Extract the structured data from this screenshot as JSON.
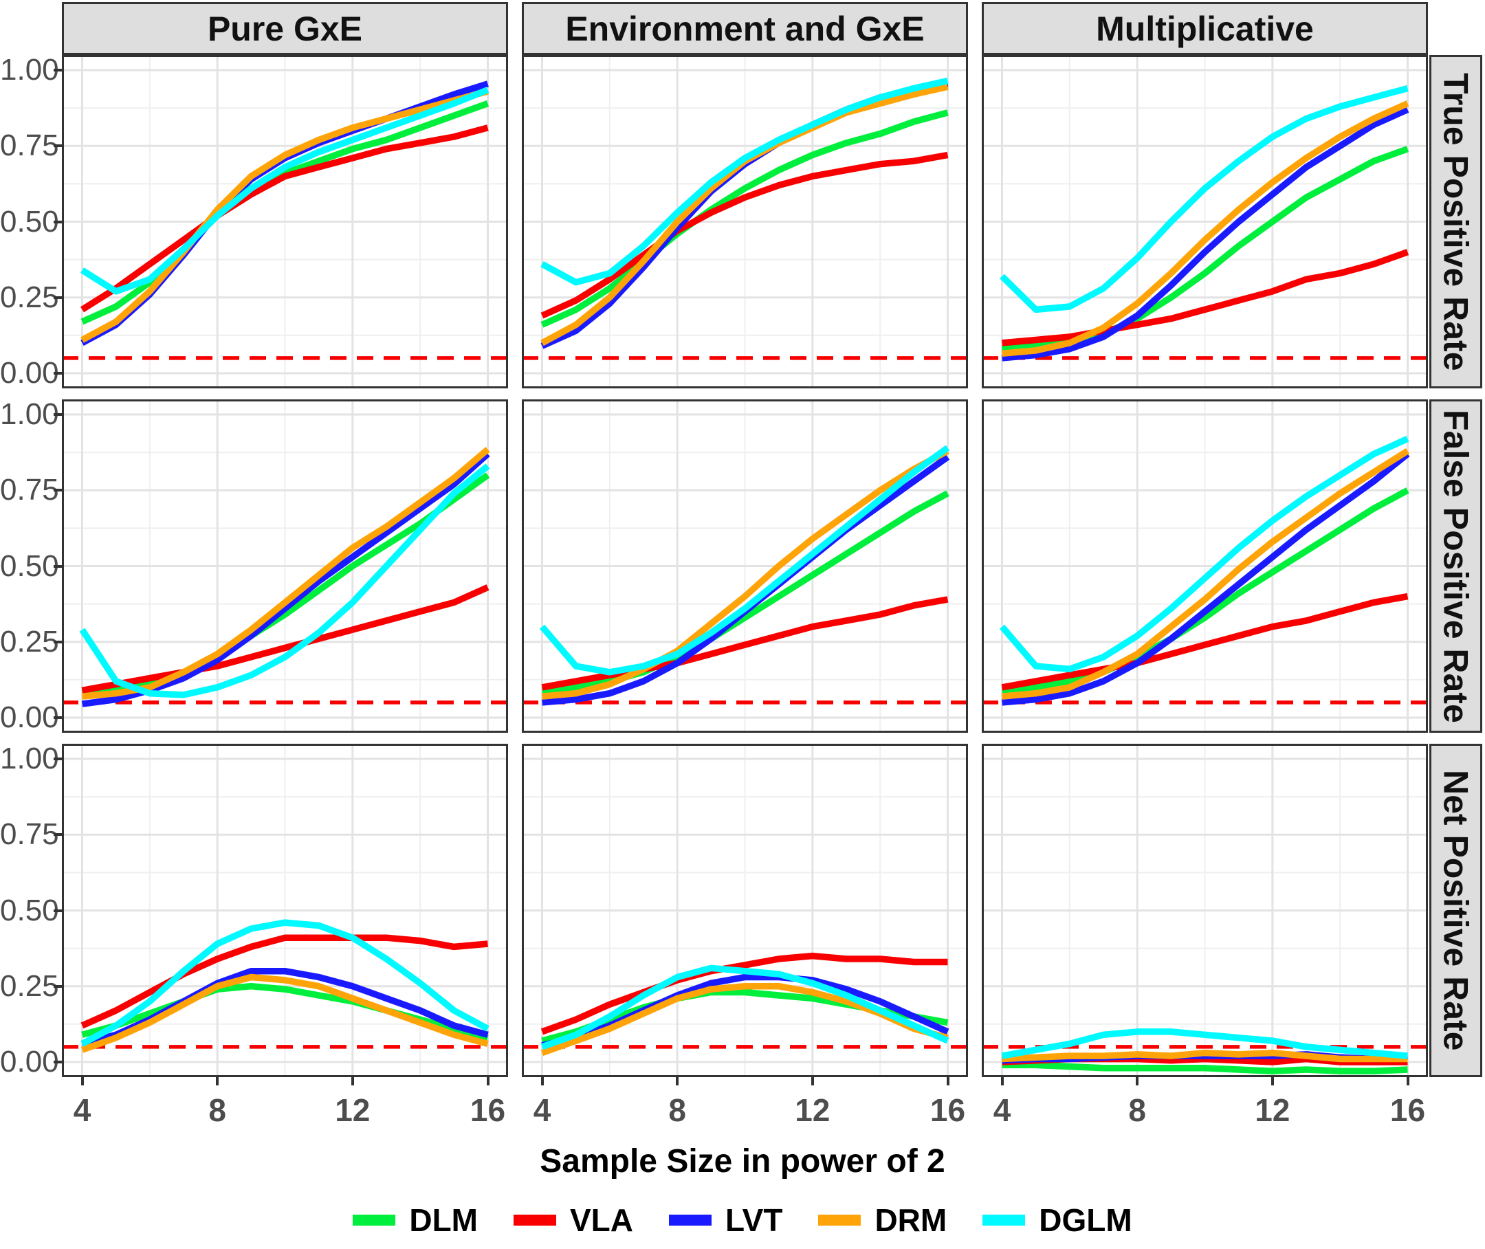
{
  "figure": {
    "xlabel": "Sample Size in power of 2",
    "col_facets": [
      "Pure GxE",
      "Environment and GxE",
      "Multiplicative"
    ],
    "row_facets": [
      "True Positive Rate",
      "False Positive Rate",
      "Net Positive Rate"
    ],
    "legend": [
      {
        "label": "DLM",
        "color": "#00EF3C"
      },
      {
        "label": "VLA",
        "color": "#F80000"
      },
      {
        "label": "LVT",
        "color": "#1A1AFF"
      },
      {
        "label": "DRM",
        "color": "#FFA408"
      },
      {
        "label": "DGLM",
        "color": "#00FAFF"
      }
    ]
  },
  "chart_data": {
    "type": "line",
    "x": [
      4,
      5,
      6,
      7,
      8,
      9,
      10,
      11,
      12,
      13,
      14,
      15,
      16
    ],
    "x_ticks": [
      {
        "v": 4,
        "label": "4"
      },
      {
        "v": 8,
        "label": "8"
      },
      {
        "v": 12,
        "label": "12"
      },
      {
        "v": 16,
        "label": "16"
      }
    ],
    "y_ticks": [
      {
        "v": 1.0,
        "label": "1.00"
      },
      {
        "v": 0.75,
        "label": "0.75"
      },
      {
        "v": 0.5,
        "label": "0.50"
      },
      {
        "v": 0.25,
        "label": "0.25"
      },
      {
        "v": 0.0,
        "label": "0.00"
      }
    ],
    "xlim": [
      3.4,
      16.6
    ],
    "ylim": [
      -0.05,
      1.05
    ],
    "grid": "major+minor",
    "legend_position": "bottom",
    "ref_line": {
      "y": 0.05,
      "color": "#F80000",
      "style": "dashed"
    },
    "panels": [
      {
        "row": "True Positive Rate",
        "col": "Pure GxE",
        "series": [
          {
            "name": "DLM",
            "values": [
              0.17,
              0.22,
              0.3,
              0.41,
              0.52,
              0.6,
              0.66,
              0.7,
              0.74,
              0.77,
              0.81,
              0.85,
              0.89
            ]
          },
          {
            "name": "VLA",
            "values": [
              0.21,
              0.28,
              0.36,
              0.44,
              0.52,
              0.59,
              0.65,
              0.68,
              0.71,
              0.74,
              0.76,
              0.78,
              0.81
            ]
          },
          {
            "name": "LVT",
            "values": [
              0.1,
              0.16,
              0.26,
              0.39,
              0.53,
              0.64,
              0.71,
              0.76,
              0.8,
              0.84,
              0.88,
              0.92,
              0.955
            ]
          },
          {
            "name": "DRM",
            "values": [
              0.11,
              0.17,
              0.27,
              0.4,
              0.54,
              0.65,
              0.72,
              0.77,
              0.81,
              0.84,
              0.87,
              0.9,
              0.93
            ]
          },
          {
            "name": "DGLM",
            "values": [
              0.34,
              0.27,
              0.31,
              0.41,
              0.52,
              0.61,
              0.68,
              0.73,
              0.77,
              0.81,
              0.85,
              0.89,
              0.935
            ]
          }
        ]
      },
      {
        "row": "True Positive Rate",
        "col": "Environment and GxE",
        "series": [
          {
            "name": "DLM",
            "values": [
              0.16,
              0.21,
              0.28,
              0.37,
              0.46,
              0.54,
              0.61,
              0.67,
              0.72,
              0.76,
              0.79,
              0.83,
              0.86
            ]
          },
          {
            "name": "VLA",
            "values": [
              0.19,
              0.24,
              0.31,
              0.39,
              0.47,
              0.53,
              0.58,
              0.62,
              0.65,
              0.67,
              0.69,
              0.7,
              0.72
            ]
          },
          {
            "name": "LVT",
            "values": [
              0.09,
              0.14,
              0.23,
              0.35,
              0.48,
              0.6,
              0.69,
              0.76,
              0.82,
              0.87,
              0.91,
              0.935,
              0.955
            ]
          },
          {
            "name": "DRM",
            "values": [
              0.1,
              0.16,
              0.25,
              0.37,
              0.5,
              0.61,
              0.7,
              0.76,
              0.81,
              0.86,
              0.89,
              0.92,
              0.945
            ]
          },
          {
            "name": "DGLM",
            "values": [
              0.36,
              0.3,
              0.33,
              0.42,
              0.53,
              0.63,
              0.71,
              0.77,
              0.82,
              0.87,
              0.91,
              0.94,
              0.965
            ]
          }
        ]
      },
      {
        "row": "True Positive Rate",
        "col": "Multiplicative",
        "series": [
          {
            "name": "DLM",
            "values": [
              0.08,
              0.09,
              0.1,
              0.13,
              0.18,
              0.25,
              0.33,
              0.42,
              0.5,
              0.58,
              0.64,
              0.7,
              0.74
            ]
          },
          {
            "name": "VLA",
            "values": [
              0.1,
              0.11,
              0.12,
              0.14,
              0.16,
              0.18,
              0.21,
              0.24,
              0.27,
              0.31,
              0.33,
              0.36,
              0.4
            ]
          },
          {
            "name": "LVT",
            "values": [
              0.05,
              0.06,
              0.08,
              0.12,
              0.19,
              0.29,
              0.4,
              0.5,
              0.59,
              0.68,
              0.75,
              0.82,
              0.87
            ]
          },
          {
            "name": "DRM",
            "values": [
              0.065,
              0.075,
              0.1,
              0.15,
              0.23,
              0.33,
              0.44,
              0.54,
              0.63,
              0.71,
              0.78,
              0.84,
              0.89
            ]
          },
          {
            "name": "DGLM",
            "values": [
              0.32,
              0.21,
              0.22,
              0.28,
              0.38,
              0.5,
              0.61,
              0.7,
              0.78,
              0.84,
              0.88,
              0.91,
              0.94
            ]
          }
        ]
      },
      {
        "row": "False Positive Rate",
        "col": "Pure GxE",
        "series": [
          {
            "name": "DLM",
            "values": [
              0.085,
              0.1,
              0.12,
              0.15,
              0.2,
              0.27,
              0.34,
              0.42,
              0.5,
              0.57,
              0.64,
              0.72,
              0.8
            ]
          },
          {
            "name": "VLA",
            "values": [
              0.09,
              0.11,
              0.13,
              0.15,
              0.17,
              0.2,
              0.23,
              0.26,
              0.29,
              0.32,
              0.35,
              0.38,
              0.43
            ]
          },
          {
            "name": "LVT",
            "values": [
              0.045,
              0.06,
              0.09,
              0.13,
              0.19,
              0.27,
              0.36,
              0.45,
              0.53,
              0.61,
              0.69,
              0.77,
              0.87
            ]
          },
          {
            "name": "DRM",
            "values": [
              0.07,
              0.08,
              0.1,
              0.15,
              0.21,
              0.29,
              0.38,
              0.47,
              0.56,
              0.63,
              0.71,
              0.79,
              0.885
            ]
          },
          {
            "name": "DGLM",
            "values": [
              0.29,
              0.12,
              0.08,
              0.075,
              0.1,
              0.14,
              0.2,
              0.28,
              0.38,
              0.5,
              0.62,
              0.74,
              0.83
            ]
          }
        ]
      },
      {
        "row": "False Positive Rate",
        "col": "Environment and GxE",
        "series": [
          {
            "name": "DLM",
            "values": [
              0.09,
              0.1,
              0.12,
              0.15,
              0.2,
              0.26,
              0.33,
              0.4,
              0.47,
              0.54,
              0.61,
              0.68,
              0.74
            ]
          },
          {
            "name": "VLA",
            "values": [
              0.1,
              0.12,
              0.14,
              0.16,
              0.18,
              0.21,
              0.24,
              0.27,
              0.3,
              0.32,
              0.34,
              0.37,
              0.39
            ]
          },
          {
            "name": "LVT",
            "values": [
              0.05,
              0.06,
              0.08,
              0.12,
              0.18,
              0.26,
              0.35,
              0.44,
              0.53,
              0.62,
              0.7,
              0.78,
              0.86
            ]
          },
          {
            "name": "DRM",
            "values": [
              0.07,
              0.08,
              0.11,
              0.16,
              0.22,
              0.31,
              0.4,
              0.5,
              0.59,
              0.67,
              0.75,
              0.82,
              0.88
            ]
          },
          {
            "name": "DGLM",
            "values": [
              0.3,
              0.17,
              0.15,
              0.17,
              0.21,
              0.28,
              0.36,
              0.45,
              0.54,
              0.63,
              0.72,
              0.81,
              0.89
            ]
          }
        ]
      },
      {
        "row": "False Positive Rate",
        "col": "Multiplicative",
        "series": [
          {
            "name": "DLM",
            "values": [
              0.09,
              0.1,
              0.12,
              0.15,
              0.2,
              0.26,
              0.33,
              0.41,
              0.48,
              0.55,
              0.62,
              0.69,
              0.75
            ]
          },
          {
            "name": "VLA",
            "values": [
              0.1,
              0.12,
              0.14,
              0.16,
              0.18,
              0.21,
              0.24,
              0.27,
              0.3,
              0.32,
              0.35,
              0.38,
              0.4
            ]
          },
          {
            "name": "LVT",
            "values": [
              0.05,
              0.06,
              0.08,
              0.12,
              0.18,
              0.26,
              0.35,
              0.44,
              0.53,
              0.62,
              0.7,
              0.78,
              0.87
            ]
          },
          {
            "name": "DRM",
            "values": [
              0.07,
              0.08,
              0.1,
              0.15,
              0.21,
              0.3,
              0.39,
              0.49,
              0.58,
              0.66,
              0.74,
              0.81,
              0.88
            ]
          },
          {
            "name": "DGLM",
            "values": [
              0.3,
              0.17,
              0.16,
              0.2,
              0.27,
              0.36,
              0.46,
              0.56,
              0.65,
              0.73,
              0.8,
              0.87,
              0.92
            ]
          }
        ]
      },
      {
        "row": "Net Positive Rate",
        "col": "Pure GxE",
        "series": [
          {
            "name": "DLM",
            "values": [
              0.09,
              0.12,
              0.16,
              0.2,
              0.24,
              0.25,
              0.24,
              0.22,
              0.2,
              0.17,
              0.14,
              0.11,
              0.08
            ]
          },
          {
            "name": "VLA",
            "values": [
              0.12,
              0.17,
              0.23,
              0.29,
              0.34,
              0.38,
              0.41,
              0.41,
              0.41,
              0.41,
              0.4,
              0.38,
              0.39
            ]
          },
          {
            "name": "LVT",
            "values": [
              0.06,
              0.09,
              0.14,
              0.2,
              0.26,
              0.3,
              0.3,
              0.28,
              0.25,
              0.21,
              0.17,
              0.12,
              0.09
            ]
          },
          {
            "name": "DRM",
            "values": [
              0.04,
              0.08,
              0.13,
              0.19,
              0.25,
              0.28,
              0.27,
              0.25,
              0.21,
              0.17,
              0.13,
              0.09,
              0.06
            ]
          },
          {
            "name": "DGLM",
            "values": [
              0.06,
              0.12,
              0.2,
              0.3,
              0.39,
              0.44,
              0.46,
              0.45,
              0.41,
              0.34,
              0.26,
              0.17,
              0.11
            ]
          }
        ]
      },
      {
        "row": "Net Positive Rate",
        "col": "Environment and GxE",
        "series": [
          {
            "name": "DLM",
            "values": [
              0.07,
              0.1,
              0.14,
              0.18,
              0.21,
              0.23,
              0.23,
              0.22,
              0.21,
              0.19,
              0.17,
              0.15,
              0.13
            ]
          },
          {
            "name": "VLA",
            "values": [
              0.1,
              0.14,
              0.19,
              0.23,
              0.27,
              0.3,
              0.32,
              0.34,
              0.35,
              0.34,
              0.34,
              0.33,
              0.33
            ]
          },
          {
            "name": "LVT",
            "values": [
              0.055,
              0.08,
              0.12,
              0.17,
              0.22,
              0.26,
              0.28,
              0.28,
              0.27,
              0.24,
              0.2,
              0.15,
              0.1
            ]
          },
          {
            "name": "DRM",
            "values": [
              0.03,
              0.07,
              0.11,
              0.16,
              0.21,
              0.24,
              0.25,
              0.25,
              0.23,
              0.2,
              0.16,
              0.11,
              0.08
            ]
          },
          {
            "name": "DGLM",
            "values": [
              0.05,
              0.09,
              0.15,
              0.22,
              0.28,
              0.31,
              0.3,
              0.29,
              0.26,
              0.22,
              0.17,
              0.12,
              0.07
            ]
          }
        ]
      },
      {
        "row": "Net Positive Rate",
        "col": "Multiplicative",
        "series": [
          {
            "name": "DLM",
            "values": [
              -0.01,
              -0.01,
              -0.015,
              -0.02,
              -0.02,
              -0.02,
              -0.02,
              -0.025,
              -0.03,
              -0.025,
              -0.03,
              -0.03,
              -0.025
            ]
          },
          {
            "name": "VLA",
            "values": [
              0.0,
              0.005,
              0.01,
              0.01,
              0.01,
              0.005,
              0.01,
              0.005,
              0.0,
              0.01,
              0.0,
              0.0,
              0.0
            ]
          },
          {
            "name": "LVT",
            "values": [
              0.005,
              0.01,
              0.01,
              0.015,
              0.02,
              0.02,
              0.02,
              0.02,
              0.02,
              0.025,
              0.015,
              0.01,
              0.02
            ]
          },
          {
            "name": "DRM",
            "values": [
              0.01,
              0.015,
              0.02,
              0.02,
              0.025,
              0.02,
              0.03,
              0.025,
              0.03,
              0.02,
              0.01,
              0.01,
              0.01
            ]
          },
          {
            "name": "DGLM",
            "values": [
              0.02,
              0.04,
              0.06,
              0.09,
              0.1,
              0.1,
              0.09,
              0.08,
              0.07,
              0.05,
              0.04,
              0.03,
              0.02
            ]
          }
        ]
      }
    ]
  }
}
